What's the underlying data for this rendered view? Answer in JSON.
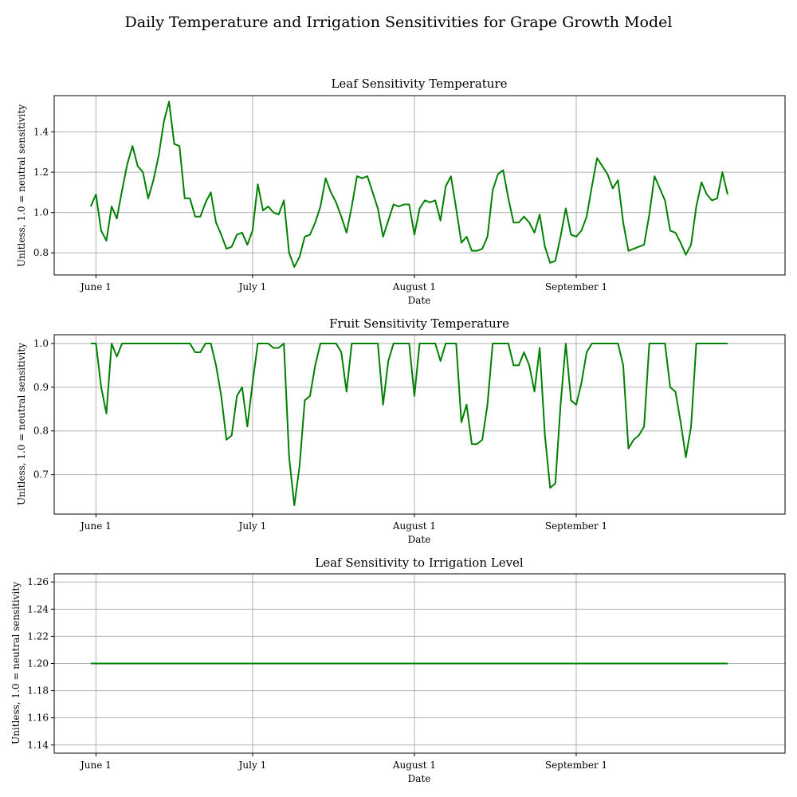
{
  "figure": {
    "title": "Daily Temperature and Irrigation Sensitivities for Grape Growth Model"
  },
  "colors": {
    "line": "#008000",
    "grid": "#b0b0b0",
    "axis": "#000000"
  },
  "chart_data": [
    {
      "type": "line",
      "title": "Leaf Sensitivity Temperature",
      "xlabel": "Date",
      "ylabel": "Unitless, 1.0 = neutral sensitivity",
      "x_start": "2023-05-31",
      "x_end": "2023-09-30",
      "xlim": [
        "2023-05-24",
        "2023-10-11"
      ],
      "xticks": [
        {
          "date": "2023-06-01",
          "label": "June 1"
        },
        {
          "date": "2023-07-01",
          "label": "July 1"
        },
        {
          "date": "2023-08-01",
          "label": "August 1"
        },
        {
          "date": "2023-09-01",
          "label": "September 1"
        }
      ],
      "ylim": [
        0.69,
        1.58
      ],
      "yticks": [
        {
          "value": 0.8,
          "label": "0.8"
        },
        {
          "value": 1.0,
          "label": "1.0"
        },
        {
          "value": 1.2,
          "label": "1.2"
        },
        {
          "value": 1.4,
          "label": "1.4"
        }
      ],
      "grid": true,
      "series": [
        {
          "values": [
            1.03,
            1.09,
            0.91,
            0.86,
            1.03,
            0.97,
            1.11,
            1.24,
            1.33,
            1.23,
            1.2,
            1.07,
            1.16,
            1.28,
            1.45,
            1.55,
            1.34,
            1.33,
            1.07,
            1.07,
            0.98,
            0.98,
            1.05,
            1.1,
            0.95,
            0.89,
            0.82,
            0.83,
            0.89,
            0.9,
            0.84,
            0.91,
            1.14,
            1.01,
            1.03,
            1.0,
            0.99,
            1.06,
            0.8,
            0.73,
            0.78,
            0.88,
            0.89,
            0.95,
            1.03,
            1.17,
            1.1,
            1.05,
            0.98,
            0.9,
            1.03,
            1.18,
            1.17,
            1.18,
            1.1,
            1.02,
            0.88,
            0.96,
            1.04,
            1.03,
            1.04,
            1.04,
            0.89,
            1.02,
            1.06,
            1.05,
            1.06,
            0.96,
            1.13,
            1.18,
            1.02,
            0.85,
            0.88,
            0.81,
            0.81,
            0.82,
            0.88,
            1.11,
            1.19,
            1.21,
            1.07,
            0.95,
            0.95,
            0.98,
            0.95,
            0.9,
            0.99,
            0.83,
            0.75,
            0.76,
            0.88,
            1.02,
            0.89,
            0.88,
            0.91,
            0.98,
            1.13,
            1.27,
            1.23,
            1.19,
            1.12,
            1.16,
            0.95,
            0.81,
            0.82,
            0.83,
            0.84,
            0.99,
            1.18,
            1.12,
            1.06,
            0.91,
            0.9,
            0.85,
            0.79,
            0.84,
            1.03,
            1.15,
            1.09,
            1.06,
            1.07,
            1.2,
            1.09
          ]
        }
      ]
    },
    {
      "type": "line",
      "title": "Fruit Sensitivity Temperature",
      "xlabel": "Date",
      "ylabel": "Unitless, 1.0 = neutral sensitivity",
      "x_start": "2023-05-31",
      "x_end": "2023-09-30",
      "xlim": [
        "2023-05-24",
        "2023-10-11"
      ],
      "xticks": [
        {
          "date": "2023-06-01",
          "label": "June 1"
        },
        {
          "date": "2023-07-01",
          "label": "July 1"
        },
        {
          "date": "2023-08-01",
          "label": "August 1"
        },
        {
          "date": "2023-09-01",
          "label": "September 1"
        }
      ],
      "ylim": [
        0.61,
        1.02
      ],
      "yticks": [
        {
          "value": 0.7,
          "label": "0.7"
        },
        {
          "value": 0.8,
          "label": "0.8"
        },
        {
          "value": 0.9,
          "label": "0.9"
        },
        {
          "value": 1.0,
          "label": "1.0"
        }
      ],
      "grid": true,
      "series": [
        {
          "values": [
            1.0,
            1.0,
            0.9,
            0.84,
            1.0,
            0.97,
            1.0,
            1.0,
            1.0,
            1.0,
            1.0,
            1.0,
            1.0,
            1.0,
            1.0,
            1.0,
            1.0,
            1.0,
            1.0,
            1.0,
            0.98,
            0.98,
            1.0,
            1.0,
            0.95,
            0.88,
            0.78,
            0.79,
            0.88,
            0.9,
            0.81,
            0.91,
            1.0,
            1.0,
            1.0,
            0.99,
            0.99,
            1.0,
            0.74,
            0.63,
            0.72,
            0.87,
            0.88,
            0.95,
            1.0,
            1.0,
            1.0,
            1.0,
            0.98,
            0.89,
            1.0,
            1.0,
            1.0,
            1.0,
            1.0,
            1.0,
            0.86,
            0.96,
            1.0,
            1.0,
            1.0,
            1.0,
            0.88,
            1.0,
            1.0,
            1.0,
            1.0,
            0.96,
            1.0,
            1.0,
            1.0,
            0.82,
            0.86,
            0.77,
            0.77,
            0.78,
            0.86,
            1.0,
            1.0,
            1.0,
            1.0,
            0.95,
            0.95,
            0.98,
            0.95,
            0.89,
            0.99,
            0.79,
            0.67,
            0.68,
            0.86,
            1.0,
            0.87,
            0.86,
            0.91,
            0.98,
            1.0,
            1.0,
            1.0,
            1.0,
            1.0,
            1.0,
            0.95,
            0.76,
            0.78,
            0.79,
            0.81,
            1.0,
            1.0,
            1.0,
            1.0,
            0.9,
            0.89,
            0.82,
            0.74,
            0.81,
            1.0,
            1.0,
            1.0,
            1.0,
            1.0,
            1.0,
            1.0
          ]
        }
      ]
    },
    {
      "type": "line",
      "title": "Leaf Sensitivity to Irrigation Level",
      "xlabel": "Date",
      "ylabel": "Unitless, 1.0 = neutral sensitivity",
      "x_start": "2023-05-31",
      "x_end": "2023-09-30",
      "xlim": [
        "2023-05-24",
        "2023-10-11"
      ],
      "xticks": [
        {
          "date": "2023-06-01",
          "label": "June 1"
        },
        {
          "date": "2023-07-01",
          "label": "July 1"
        },
        {
          "date": "2023-08-01",
          "label": "August 1"
        },
        {
          "date": "2023-09-01",
          "label": "September 1"
        }
      ],
      "ylim": [
        1.134,
        1.266
      ],
      "yticks": [
        {
          "value": 1.14,
          "label": "1.14"
        },
        {
          "value": 1.16,
          "label": "1.16"
        },
        {
          "value": 1.18,
          "label": "1.18"
        },
        {
          "value": 1.2,
          "label": "1.20"
        },
        {
          "value": 1.22,
          "label": "1.22"
        },
        {
          "value": 1.24,
          "label": "1.24"
        },
        {
          "value": 1.26,
          "label": "1.26"
        }
      ],
      "grid": true,
      "series": [
        {
          "values": [
            1.2,
            1.2,
            1.2,
            1.2,
            1.2,
            1.2,
            1.2,
            1.2,
            1.2,
            1.2,
            1.2,
            1.2,
            1.2,
            1.2,
            1.2,
            1.2,
            1.2,
            1.2,
            1.2,
            1.2,
            1.2,
            1.2,
            1.2,
            1.2,
            1.2,
            1.2,
            1.2,
            1.2,
            1.2,
            1.2,
            1.2,
            1.2,
            1.2,
            1.2,
            1.2,
            1.2,
            1.2,
            1.2,
            1.2,
            1.2,
            1.2,
            1.2,
            1.2,
            1.2,
            1.2,
            1.2,
            1.2,
            1.2,
            1.2,
            1.2,
            1.2,
            1.2,
            1.2,
            1.2,
            1.2,
            1.2,
            1.2,
            1.2,
            1.2,
            1.2,
            1.2,
            1.2,
            1.2,
            1.2,
            1.2,
            1.2,
            1.2,
            1.2,
            1.2,
            1.2,
            1.2,
            1.2,
            1.2,
            1.2,
            1.2,
            1.2,
            1.2,
            1.2,
            1.2,
            1.2,
            1.2,
            1.2,
            1.2,
            1.2,
            1.2,
            1.2,
            1.2,
            1.2,
            1.2,
            1.2,
            1.2,
            1.2,
            1.2,
            1.2,
            1.2,
            1.2,
            1.2,
            1.2,
            1.2,
            1.2,
            1.2,
            1.2,
            1.2,
            1.2,
            1.2,
            1.2,
            1.2,
            1.2,
            1.2,
            1.2,
            1.2,
            1.2,
            1.2,
            1.2,
            1.2,
            1.2,
            1.2,
            1.2,
            1.2,
            1.2,
            1.2,
            1.2,
            1.2
          ]
        }
      ]
    }
  ]
}
